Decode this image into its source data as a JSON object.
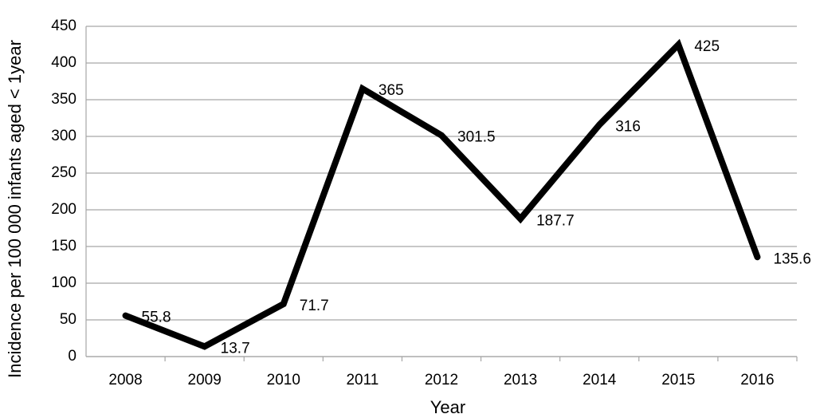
{
  "chart_data": {
    "type": "line",
    "x_label": "Year",
    "y_label": "Incidence per 100 000 infants aged < 1year",
    "categories": [
      "2008",
      "2009",
      "2010",
      "2011",
      "2012",
      "2013",
      "2014",
      "2015",
      "2016"
    ],
    "series": [
      {
        "color": "#000000",
        "values": [
          55.8,
          13.7,
          71.7,
          365,
          301.5,
          187.7,
          316,
          425,
          135.6
        ]
      }
    ],
    "ylim": [
      0,
      450
    ],
    "yticks": [
      0,
      50,
      100,
      150,
      200,
      250,
      300,
      350,
      400,
      450
    ],
    "grid": true
  }
}
